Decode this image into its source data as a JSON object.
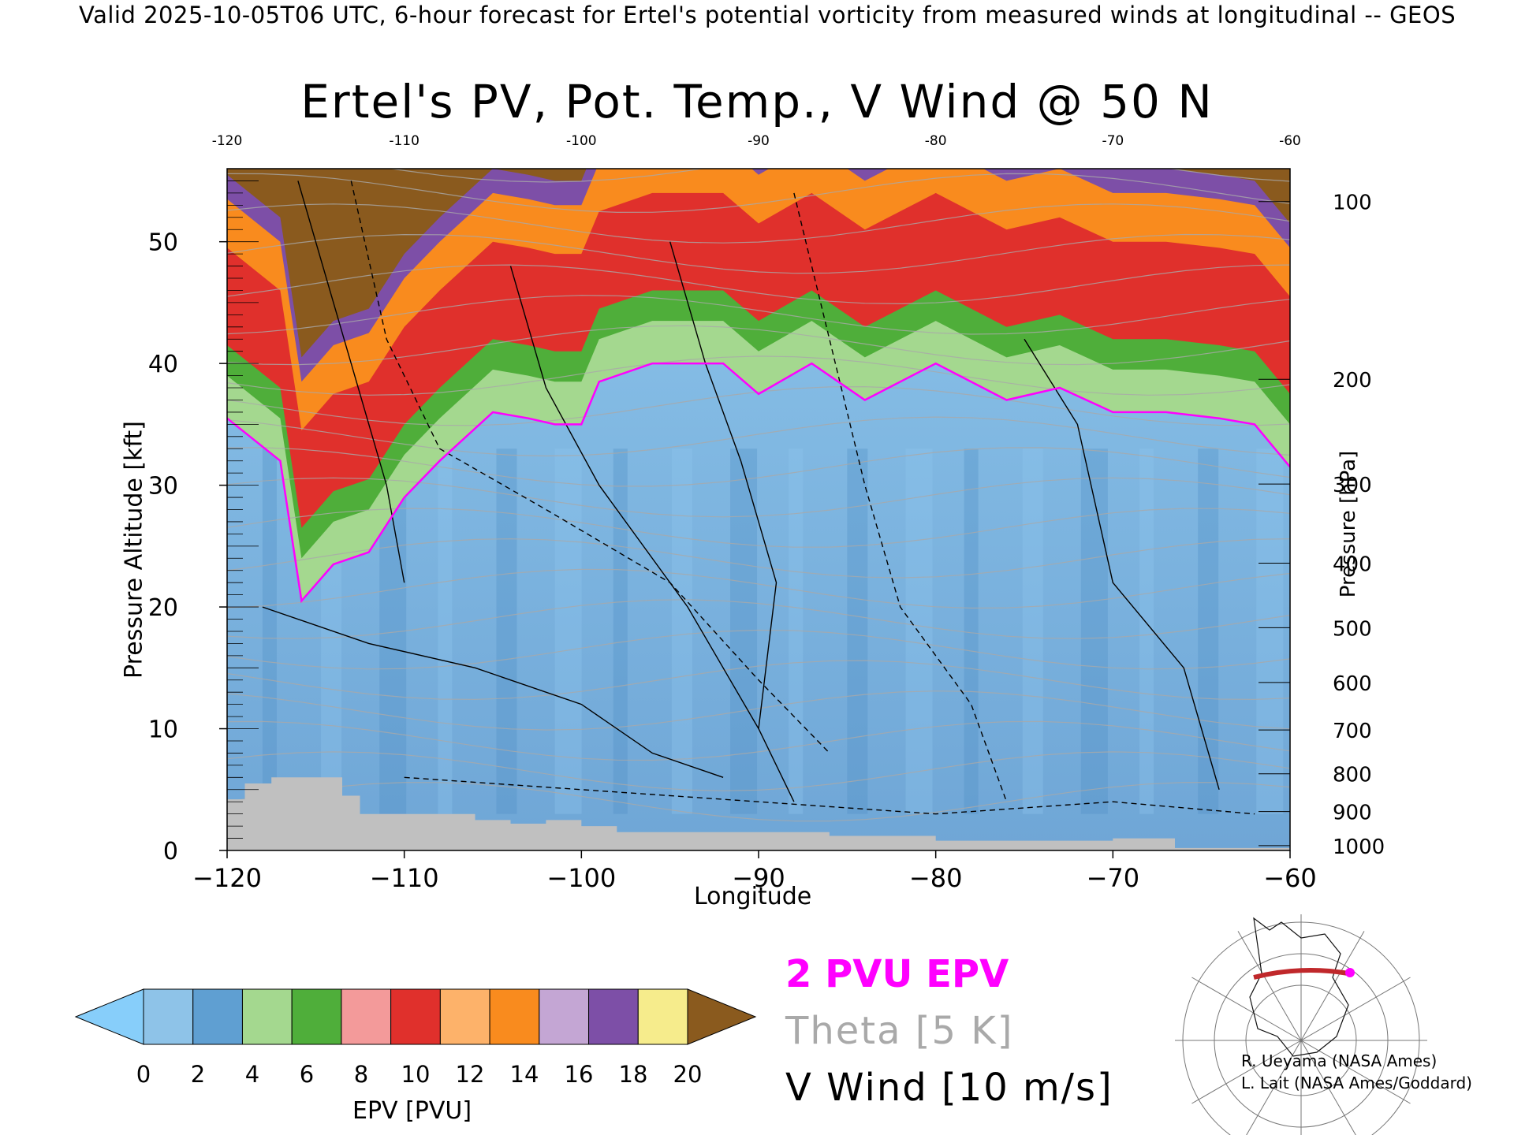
{
  "header": {
    "valid_line": "Valid 2025-10-05T06 UTC, 6-hour forecast for Ertel's potential vorticity from measured winds at longitudinal -- GEOS"
  },
  "chart_data": {
    "type": "heatmap",
    "title": "Ertel's PV, Pot. Temp., V Wind @ 50 N",
    "xlabel": "Longitude",
    "ylabel": "Pressure Altitude [kft]",
    "y2label": "Pressure [hPa]",
    "xlim": [
      -120,
      -60
    ],
    "ylim": [
      0,
      56
    ],
    "x_ticks": [
      "-120",
      "-110",
      "-100",
      "-90",
      "-80",
      "-70",
      "-60"
    ],
    "x_ticks_top": [
      "-120",
      "-110",
      "-100",
      "-90",
      "-80",
      "-70",
      "-60"
    ],
    "y_ticks": [
      "0",
      "10",
      "20",
      "30",
      "40",
      "50"
    ],
    "pressure_ticks": [
      {
        "hpa": 1000,
        "kft": 0.4
      },
      {
        "hpa": 900,
        "kft": 3.2
      },
      {
        "hpa": 800,
        "kft": 6.3
      },
      {
        "hpa": 700,
        "kft": 9.9
      },
      {
        "hpa": 600,
        "kft": 13.8
      },
      {
        "hpa": 500,
        "kft": 18.3
      },
      {
        "hpa": 400,
        "kft": 23.6
      },
      {
        "hpa": 300,
        "kft": 30.1
      },
      {
        "hpa": 200,
        "kft": 38.7
      },
      {
        "hpa": 100,
        "kft": 53.3
      }
    ],
    "tropopause_2pvu_kft": [
      {
        "lon": -120,
        "kft": 35.5
      },
      {
        "lon": -117,
        "kft": 32
      },
      {
        "lon": -115.8,
        "kft": 20.5
      },
      {
        "lon": -114,
        "kft": 23.5
      },
      {
        "lon": -112,
        "kft": 24.5
      },
      {
        "lon": -110,
        "kft": 29
      },
      {
        "lon": -108,
        "kft": 32
      },
      {
        "lon": -105,
        "kft": 36
      },
      {
        "lon": -103,
        "kft": 35.5
      },
      {
        "lon": -101.5,
        "kft": 35
      },
      {
        "lon": -100,
        "kft": 35
      },
      {
        "lon": -99,
        "kft": 38.5
      },
      {
        "lon": -96,
        "kft": 40
      },
      {
        "lon": -92,
        "kft": 40
      },
      {
        "lon": -90,
        "kft": 37.5
      },
      {
        "lon": -87,
        "kft": 40
      },
      {
        "lon": -84,
        "kft": 37
      },
      {
        "lon": -80,
        "kft": 40
      },
      {
        "lon": -76,
        "kft": 37
      },
      {
        "lon": -73,
        "kft": 38
      },
      {
        "lon": -70,
        "kft": 36
      },
      {
        "lon": -67,
        "kft": 36
      },
      {
        "lon": -64,
        "kft": 35.5
      },
      {
        "lon": -62,
        "kft": 35
      },
      {
        "lon": -60,
        "kft": 31.5
      }
    ],
    "stratosphere_bands": [
      {
        "pvu_min": 2,
        "pvu_max": 4,
        "depth_kft": 3.5
      },
      {
        "pvu_min": 4,
        "pvu_max": 6,
        "depth_kft": 2.5
      },
      {
        "pvu_min": 6,
        "pvu_max": 10,
        "depth_kft": 8
      },
      {
        "pvu_min": 10,
        "pvu_max": 14,
        "depth_kft": 4
      },
      {
        "pvu_min": 14,
        "pvu_max": 16,
        "depth_kft": 2
      },
      {
        "pvu_min": 16,
        "pvu_max": 20,
        "depth_kft": 2
      }
    ],
    "terrain_kft": [
      {
        "lon": -120,
        "kft": 4.2
      },
      {
        "lon": -119,
        "kft": 5.5
      },
      {
        "lon": -117.5,
        "kft": 6
      },
      {
        "lon": -113.5,
        "kft": 4.5
      },
      {
        "lon": -112.5,
        "kft": 3
      },
      {
        "lon": -106,
        "kft": 2.5
      },
      {
        "lon": -104,
        "kft": 2.2
      },
      {
        "lon": -102,
        "kft": 2.5
      },
      {
        "lon": -100,
        "kft": 2
      },
      {
        "lon": -98,
        "kft": 1.5
      },
      {
        "lon": -90,
        "kft": 1.5
      },
      {
        "lon": -86,
        "kft": 1.2
      },
      {
        "lon": -80,
        "kft": 0.8
      },
      {
        "lon": -70,
        "kft": 1.0
      },
      {
        "lon": -66.5,
        "kft": 0.2
      },
      {
        "lon": -60,
        "kft": 0
      }
    ],
    "colorbar": {
      "label": "EPV [PVU]",
      "ticks": [
        "0",
        "2",
        "4",
        "6",
        "8",
        "10",
        "12",
        "14",
        "16",
        "18",
        "20"
      ],
      "colors": [
        "#8ec3e8",
        "#5f9fd2",
        "#a4d88f",
        "#4fae3a",
        "#f39a9a",
        "#e0302c",
        "#fdb26a",
        "#f98b1e",
        "#c4a6d4",
        "#7d4fa7",
        "#f6ec8c",
        "#8a5a1e"
      ],
      "under_color": "#87cefa",
      "over_color": "#8a5a1e"
    },
    "legend": [
      {
        "label": "2 PVU EPV",
        "color": "#ff00ff"
      },
      {
        "label": "Theta [5 K]",
        "color": "#a9a9a9"
      },
      {
        "label": "V Wind [10 m/s]",
        "color": "#000000"
      }
    ]
  },
  "credits": {
    "line1": "R. Ueyama (NASA Ames)",
    "line2": "L. Lait (NASA Ames/Goddard)"
  },
  "colors": {
    "tropopause": "#ff00ff",
    "terrain": "#c0c0c0",
    "theta": "#a9a9a9",
    "wind": "#000000"
  }
}
